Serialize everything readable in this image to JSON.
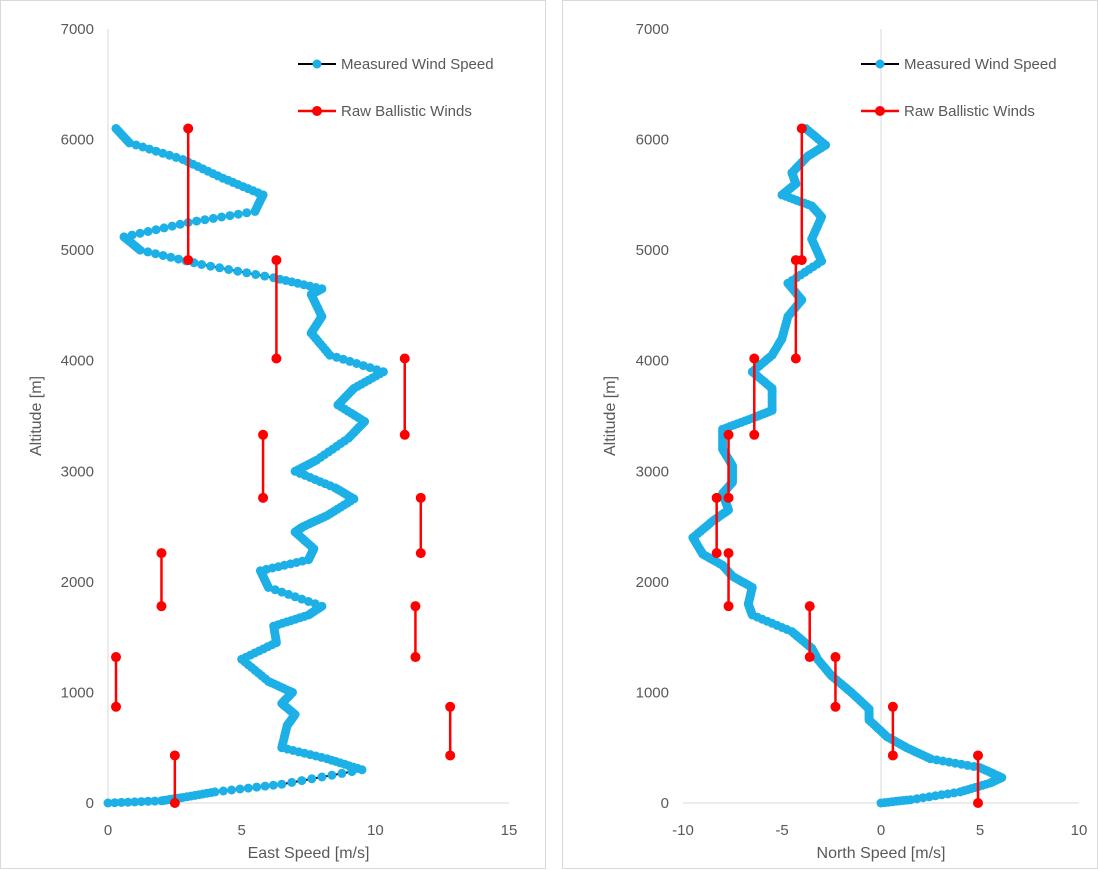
{
  "colors": {
    "measured": "#1cb0e6",
    "ballistic": "#ff0000",
    "axis_line": "#d9d9d9",
    "text": "#595959"
  },
  "chart_data": [
    {
      "type": "scatter",
      "title": "",
      "xlabel": "East Speed [m/s]",
      "ylabel": "Altitude [m]",
      "xlim": [
        0,
        15
      ],
      "ylim": [
        0,
        7000
      ],
      "x_ticks": [
        "0",
        "5",
        "10",
        "15"
      ],
      "y_ticks": [
        "0",
        "1000",
        "2000",
        "3000",
        "4000",
        "5000",
        "6000",
        "7000"
      ],
      "grid": false,
      "legend": "top-right",
      "legend_entries": [
        "Measured Wind Speed",
        "Raw Ballistic Winds"
      ],
      "series": [
        {
          "name": "Measured Wind Speed",
          "style": "line-with-dots",
          "points": [
            [
              0,
              0
            ],
            [
              2,
              20
            ],
            [
              2.8,
              50
            ],
            [
              4,
              100
            ],
            [
              6.5,
              170
            ],
            [
              9.5,
              300
            ],
            [
              8.2,
              400
            ],
            [
              6.5,
              500
            ],
            [
              6.7,
              700
            ],
            [
              7.0,
              800
            ],
            [
              6.5,
              900
            ],
            [
              6.9,
              1000
            ],
            [
              6.0,
              1100
            ],
            [
              5.0,
              1300
            ],
            [
              6.3,
              1450
            ],
            [
              6.2,
              1600
            ],
            [
              7.5,
              1700
            ],
            [
              8.0,
              1780
            ],
            [
              6.0,
              1950
            ],
            [
              5.7,
              2100
            ],
            [
              7.5,
              2200
            ],
            [
              7.7,
              2300
            ],
            [
              7.0,
              2450
            ],
            [
              7.3,
              2500
            ],
            [
              8.2,
              2600
            ],
            [
              9.2,
              2750
            ],
            [
              8.5,
              2850
            ],
            [
              7.0,
              3000
            ],
            [
              7.8,
              3100
            ],
            [
              9.0,
              3300
            ],
            [
              9.6,
              3450
            ],
            [
              8.6,
              3600
            ],
            [
              9.2,
              3750
            ],
            [
              10.3,
              3900
            ],
            [
              8.3,
              4050
            ],
            [
              7.6,
              4250
            ],
            [
              8.0,
              4400
            ],
            [
              7.6,
              4600
            ],
            [
              8.0,
              4650
            ],
            [
              6.2,
              4750
            ],
            [
              3.5,
              4870
            ],
            [
              1.2,
              5000
            ],
            [
              0.6,
              5120
            ],
            [
              3.0,
              5250
            ],
            [
              5.5,
              5350
            ],
            [
              5.8,
              5500
            ],
            [
              4.3,
              5650
            ],
            [
              2.8,
              5820
            ],
            [
              0.8,
              5970
            ],
            [
              0.3,
              6100
            ]
          ]
        },
        {
          "name": "Raw Ballistic Winds",
          "style": "vertical-segments",
          "segments": [
            [
              2.5,
              0,
              430
            ],
            [
              12.8,
              430,
              870
            ],
            [
              0.3,
              870,
              1320
            ],
            [
              11.5,
              1320,
              1780
            ],
            [
              2.0,
              1780,
              2260
            ],
            [
              11.7,
              2260,
              2760
            ],
            [
              5.8,
              2760,
              3330
            ],
            [
              11.1,
              3330,
              4020
            ],
            [
              6.3,
              4020,
              4910
            ],
            [
              3.0,
              4910,
              6100
            ]
          ]
        }
      ]
    },
    {
      "type": "scatter",
      "title": "",
      "xlabel": "North Speed [m/s]",
      "ylabel": "Altitude [m]",
      "xlim": [
        -10,
        10
      ],
      "ylim": [
        0,
        7000
      ],
      "x_ticks": [
        "-10",
        "-5",
        "0",
        "5",
        "10"
      ],
      "y_ticks": [
        "0",
        "1000",
        "2000",
        "3000",
        "4000",
        "5000",
        "6000",
        "7000"
      ],
      "grid": false,
      "legend": "top-right",
      "legend_entries": [
        "Measured Wind Speed",
        "Raw Ballistic Winds"
      ],
      "series": [
        {
          "name": "Measured Wind Speed",
          "style": "line-with-dots",
          "points": [
            [
              0,
              0
            ],
            [
              1.5,
              30
            ],
            [
              4.0,
              100
            ],
            [
              5.5,
              180
            ],
            [
              6.1,
              230
            ],
            [
              5.0,
              320
            ],
            [
              2.5,
              400
            ],
            [
              1.3,
              500
            ],
            [
              0.3,
              600
            ],
            [
              -0.6,
              750
            ],
            [
              -0.6,
              850
            ],
            [
              -1.5,
              1000
            ],
            [
              -2.5,
              1150
            ],
            [
              -3.2,
              1300
            ],
            [
              -3.5,
              1400
            ],
            [
              -4.5,
              1550
            ],
            [
              -6.5,
              1700
            ],
            [
              -6.7,
              1800
            ],
            [
              -6.5,
              1950
            ],
            [
              -7.5,
              2050
            ],
            [
              -8.0,
              2150
            ],
            [
              -9.0,
              2250
            ],
            [
              -9.5,
              2400
            ],
            [
              -8.5,
              2550
            ],
            [
              -7.7,
              2650
            ],
            [
              -8.0,
              2800
            ],
            [
              -7.5,
              2900
            ],
            [
              -7.5,
              3050
            ],
            [
              -8.0,
              3200
            ],
            [
              -8.0,
              3380
            ],
            [
              -6.5,
              3480
            ],
            [
              -5.5,
              3550
            ],
            [
              -5.5,
              3750
            ],
            [
              -6.5,
              3900
            ],
            [
              -5.5,
              4050
            ],
            [
              -5.0,
              4200
            ],
            [
              -4.7,
              4400
            ],
            [
              -4.0,
              4550
            ],
            [
              -4.7,
              4700
            ],
            [
              -3.0,
              4900
            ],
            [
              -3.5,
              5100
            ],
            [
              -3.0,
              5300
            ],
            [
              -3.5,
              5400
            ],
            [
              -5.0,
              5500
            ],
            [
              -4.3,
              5600
            ],
            [
              -4.5,
              5700
            ],
            [
              -3.7,
              5850
            ],
            [
              -2.8,
              5950
            ],
            [
              -3.8,
              6100
            ]
          ]
        },
        {
          "name": "Raw Ballistic Winds",
          "style": "vertical-segments",
          "segments": [
            [
              4.9,
              0,
              430
            ],
            [
              0.6,
              430,
              870
            ],
            [
              -2.3,
              870,
              1320
            ],
            [
              -3.6,
              1320,
              1780
            ],
            [
              -7.7,
              1780,
              2260
            ],
            [
              -8.3,
              2260,
              2760
            ],
            [
              -7.7,
              2760,
              3330
            ],
            [
              -6.4,
              3330,
              4020
            ],
            [
              -4.3,
              4020,
              4910
            ],
            [
              -4.0,
              4910,
              6100
            ]
          ]
        }
      ]
    }
  ]
}
